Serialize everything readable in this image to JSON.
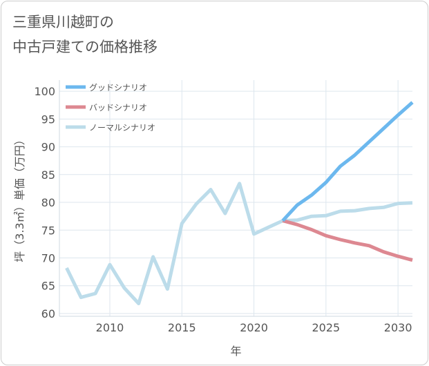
{
  "page": {
    "title_line1": "三重県川越町の",
    "title_line2": "中古戸建ての価格推移"
  },
  "chart_data": {
    "type": "line",
    "xlabel": "年",
    "ylabel": "坪（3.3㎡）単価（万円）",
    "xlim": [
      2006.5,
      2031
    ],
    "ylim": [
      59.5,
      102
    ],
    "xticks": [
      2010,
      2015,
      2020,
      2025,
      2030
    ],
    "yticks": [
      60,
      65,
      70,
      75,
      80,
      85,
      90,
      95,
      100
    ],
    "grid": true,
    "legend_position": "top-left",
    "series": [
      {
        "name": "グッドシナリオ",
        "color": "#6cb8ee",
        "x": [
          2022,
          2023,
          2024,
          2025,
          2026,
          2027,
          2028,
          2029,
          2030,
          2031
        ],
        "values": [
          76.7,
          79.5,
          81.3,
          83.6,
          86.5,
          88.5,
          90.9,
          93.3,
          95.7,
          98.0
        ]
      },
      {
        "name": "バッドシナリオ",
        "color": "#dd8891",
        "x": [
          2022,
          2023,
          2024,
          2025,
          2026,
          2027,
          2028,
          2029,
          2030,
          2031
        ],
        "values": [
          76.7,
          76.0,
          75.1,
          74.0,
          73.3,
          72.7,
          72.2,
          71.1,
          70.3,
          69.6
        ]
      },
      {
        "name": "ノーマルシナリオ",
        "color": "#bcdcea",
        "x": [
          2007,
          2008,
          2009,
          2010,
          2011,
          2012,
          2013,
          2014,
          2015,
          2016,
          2017,
          2018,
          2019,
          2020,
          2021,
          2022,
          2023,
          2024,
          2025,
          2026,
          2027,
          2028,
          2029,
          2030,
          2031
        ],
        "values": [
          68.2,
          62.9,
          63.6,
          68.8,
          64.6,
          61.8,
          70.2,
          64.4,
          76.2,
          79.7,
          82.3,
          78.0,
          83.4,
          74.3,
          75.5,
          76.7,
          76.8,
          77.5,
          77.6,
          78.4,
          78.5,
          78.9,
          79.1,
          79.8,
          79.9
        ]
      }
    ]
  }
}
